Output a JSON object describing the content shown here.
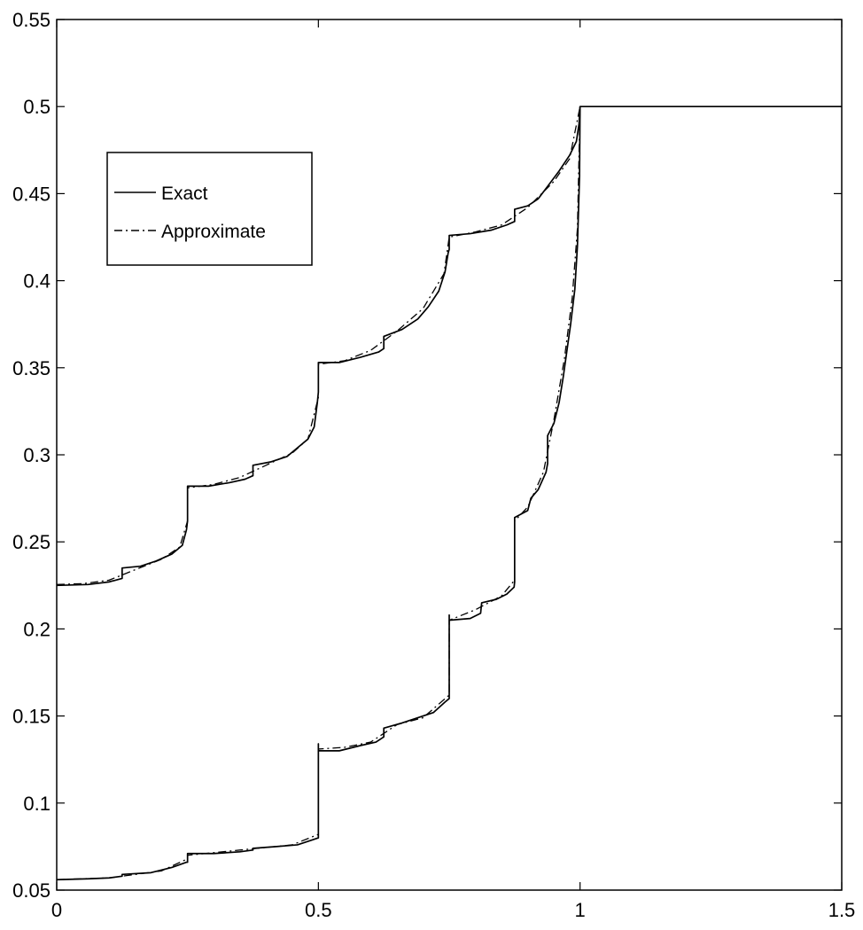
{
  "chart_data": {
    "type": "line",
    "title": "",
    "xlabel": "",
    "ylabel": "",
    "xlim": [
      0,
      1.5
    ],
    "ylim": [
      0.05,
      0.55
    ],
    "x_ticks": [
      0,
      0.5,
      1,
      1.5
    ],
    "x_tick_labels": [
      "0",
      "0.5",
      "1",
      "1.5"
    ],
    "y_ticks": [
      0.05,
      0.1,
      0.15,
      0.2,
      0.25,
      0.3,
      0.35,
      0.4,
      0.45,
      0.5,
      0.55
    ],
    "y_tick_labels": [
      "0.05",
      "0.1",
      "0.15",
      "0.2",
      "0.25",
      "0.3",
      "0.35",
      "0.4",
      "0.45",
      "0.5",
      "0.55"
    ],
    "grid": false,
    "legend_position": "upper-left",
    "series": [
      {
        "name": "Exact",
        "style": "solid",
        "color": "#000000",
        "curves": [
          [
            [
              0,
              0.225
            ],
            [
              0.06,
              0.2255
            ],
            [
              0.1,
              0.227
            ],
            [
              0.125,
              0.229
            ],
            [
              0.125,
              0.235
            ],
            [
              0.16,
              0.236
            ],
            [
              0.19,
              0.239
            ],
            [
              0.22,
              0.243
            ],
            [
              0.24,
              0.248
            ],
            [
              0.248,
              0.257
            ],
            [
              0.25,
              0.262
            ],
            [
              0.25,
              0.282
            ],
            [
              0.29,
              0.282
            ],
            [
              0.33,
              0.284
            ],
            [
              0.36,
              0.286
            ],
            [
              0.375,
              0.288
            ],
            [
              0.375,
              0.294
            ],
            [
              0.41,
              0.296
            ],
            [
              0.44,
              0.299
            ],
            [
              0.46,
              0.304
            ],
            [
              0.48,
              0.309
            ],
            [
              0.492,
              0.316
            ],
            [
              0.498,
              0.33
            ],
            [
              0.5,
              0.336
            ],
            [
              0.5,
              0.353
            ],
            [
              0.54,
              0.353
            ],
            [
              0.58,
              0.356
            ],
            [
              0.615,
              0.359
            ],
            [
              0.625,
              0.361
            ],
            [
              0.625,
              0.368
            ],
            [
              0.66,
              0.372
            ],
            [
              0.69,
              0.378
            ],
            [
              0.71,
              0.385
            ],
            [
              0.73,
              0.394
            ],
            [
              0.742,
              0.405
            ],
            [
              0.748,
              0.416
            ],
            [
              0.75,
              0.418
            ],
            [
              0.75,
              0.426
            ],
            [
              0.79,
              0.427
            ],
            [
              0.83,
              0.429
            ],
            [
              0.86,
              0.432
            ],
            [
              0.875,
              0.434
            ],
            [
              0.875,
              0.441
            ],
            [
              0.9,
              0.443
            ],
            [
              0.92,
              0.447
            ],
            [
              0.94,
              0.455
            ],
            [
              0.96,
              0.463
            ],
            [
              0.98,
              0.472
            ],
            [
              0.993,
              0.48
            ],
            [
              0.998,
              0.49
            ],
            [
              1,
              0.5
            ],
            [
              1.5,
              0.5
            ]
          ],
          [
            [
              0,
              0.056
            ],
            [
              0.06,
              0.0565
            ],
            [
              0.1,
              0.057
            ],
            [
              0.125,
              0.058
            ],
            [
              0.125,
              0.059
            ],
            [
              0.18,
              0.06
            ],
            [
              0.22,
              0.063
            ],
            [
              0.248,
              0.066
            ],
            [
              0.25,
              0.066
            ],
            [
              0.25,
              0.071
            ],
            [
              0.3,
              0.071
            ],
            [
              0.35,
              0.072
            ],
            [
              0.375,
              0.073
            ],
            [
              0.375,
              0.074
            ],
            [
              0.42,
              0.075
            ],
            [
              0.46,
              0.076
            ],
            [
              0.49,
              0.079
            ],
            [
              0.5,
              0.08
            ],
            [
              0.5,
              0.134
            ],
            [
              0.5,
              0.13
            ],
            [
              0.54,
              0.13
            ],
            [
              0.58,
              0.133
            ],
            [
              0.61,
              0.135
            ],
            [
              0.625,
              0.138
            ],
            [
              0.625,
              0.143
            ],
            [
              0.66,
              0.146
            ],
            [
              0.69,
              0.149
            ],
            [
              0.72,
              0.152
            ],
            [
              0.742,
              0.158
            ],
            [
              0.75,
              0.16
            ],
            [
              0.75,
              0.208
            ],
            [
              0.75,
              0.205
            ],
            [
              0.79,
              0.206
            ],
            [
              0.81,
              0.209
            ],
            [
              0.812,
              0.215
            ],
            [
              0.84,
              0.217
            ],
            [
              0.86,
              0.22
            ],
            [
              0.874,
              0.224
            ],
            [
              0.875,
              0.227
            ],
            [
              0.875,
              0.264
            ],
            [
              0.9,
              0.268
            ],
            [
              0.906,
              0.275
            ],
            [
              0.92,
              0.28
            ],
            [
              0.935,
              0.29
            ],
            [
              0.938,
              0.295
            ],
            [
              0.938,
              0.311
            ],
            [
              0.95,
              0.318
            ],
            [
              0.96,
              0.33
            ],
            [
              0.968,
              0.345
            ],
            [
              0.975,
              0.36
            ],
            [
              0.982,
              0.375
            ],
            [
              0.99,
              0.395
            ],
            [
              0.995,
              0.42
            ],
            [
              0.999,
              0.46
            ],
            [
              1,
              0.5
            ]
          ]
        ]
      },
      {
        "name": "Approximate",
        "style": "dashdot",
        "color": "#000000",
        "curves": [
          [
            [
              0,
              0.2255
            ],
            [
              0.05,
              0.226
            ],
            [
              0.1,
              0.228
            ],
            [
              0.15,
              0.234
            ],
            [
              0.2,
              0.24
            ],
            [
              0.235,
              0.247
            ],
            [
              0.25,
              0.262
            ],
            [
              0.25,
              0.281
            ],
            [
              0.3,
              0.283
            ],
            [
              0.35,
              0.287
            ],
            [
              0.4,
              0.294
            ],
            [
              0.45,
              0.301
            ],
            [
              0.48,
              0.309
            ],
            [
              0.5,
              0.333
            ],
            [
              0.5,
              0.352
            ],
            [
              0.55,
              0.354
            ],
            [
              0.6,
              0.36
            ],
            [
              0.65,
              0.371
            ],
            [
              0.7,
              0.384
            ],
            [
              0.74,
              0.404
            ],
            [
              0.75,
              0.425
            ],
            [
              0.8,
              0.428
            ],
            [
              0.85,
              0.432
            ],
            [
              0.9,
              0.442
            ],
            [
              0.95,
              0.457
            ],
            [
              0.98,
              0.47
            ],
            [
              1,
              0.5
            ],
            [
              1.5,
              0.5
            ]
          ],
          [
            [
              0,
              0.056
            ],
            [
              0.1,
              0.057
            ],
            [
              0.2,
              0.061
            ],
            [
              0.25,
              0.068
            ],
            [
              0.25,
              0.07
            ],
            [
              0.35,
              0.073
            ],
            [
              0.45,
              0.076
            ],
            [
              0.5,
              0.082
            ],
            [
              0.5,
              0.131
            ],
            [
              0.55,
              0.132
            ],
            [
              0.6,
              0.135
            ],
            [
              0.65,
              0.145
            ],
            [
              0.7,
              0.149
            ],
            [
              0.75,
              0.162
            ],
            [
              0.75,
              0.205
            ],
            [
              0.8,
              0.211
            ],
            [
              0.85,
              0.219
            ],
            [
              0.875,
              0.228
            ],
            [
              0.875,
              0.262
            ],
            [
              0.9,
              0.27
            ],
            [
              0.93,
              0.29
            ],
            [
              0.95,
              0.32
            ],
            [
              0.97,
              0.355
            ],
            [
              0.985,
              0.39
            ],
            [
              0.995,
              0.43
            ],
            [
              1,
              0.5
            ]
          ]
        ]
      }
    ]
  }
}
